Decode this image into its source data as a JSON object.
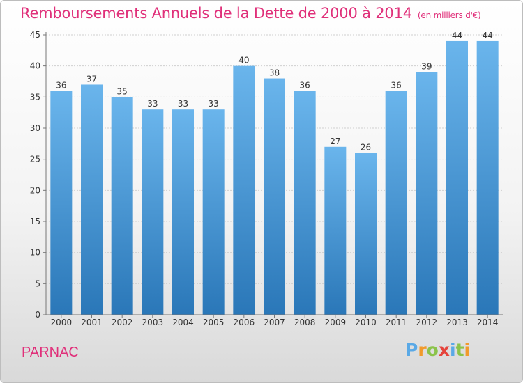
{
  "title": "Remboursements Annuels de la Dette de 2000 à 2014",
  "subtitle": "(en milliers d'€)",
  "commune": "PARNAC",
  "logo": {
    "letters": [
      "P",
      "r",
      "o",
      "x",
      "i",
      "t",
      "i"
    ],
    "colors": [
      "#5aa9e6",
      "#f19a2b",
      "#8bc34a",
      "#e5443c",
      "#5aa9e6",
      "#8bc34a",
      "#f19a2b"
    ]
  },
  "colors": {
    "bar_top": "#6ab5ec",
    "bar_bottom": "#2a77b8",
    "title": "#e0307a",
    "grid": "#cfcfcf"
  },
  "chart_data": {
    "type": "bar",
    "title": "Remboursements Annuels de la Dette de 2000 à 2014",
    "subtitle": "(en milliers d'€)",
    "categories": [
      "2000",
      "2001",
      "2002",
      "2003",
      "2004",
      "2005",
      "2006",
      "2007",
      "2008",
      "2009",
      "2010",
      "2011",
      "2012",
      "2013",
      "2014"
    ],
    "values": [
      36,
      37,
      35,
      33,
      33,
      33,
      40,
      38,
      36,
      27,
      26,
      36,
      39,
      44,
      44
    ],
    "ylim": [
      0,
      45
    ],
    "yticks": [
      0,
      5,
      10,
      15,
      20,
      25,
      30,
      35,
      40,
      45
    ],
    "grid": true,
    "xlabel": "",
    "ylabel": ""
  }
}
